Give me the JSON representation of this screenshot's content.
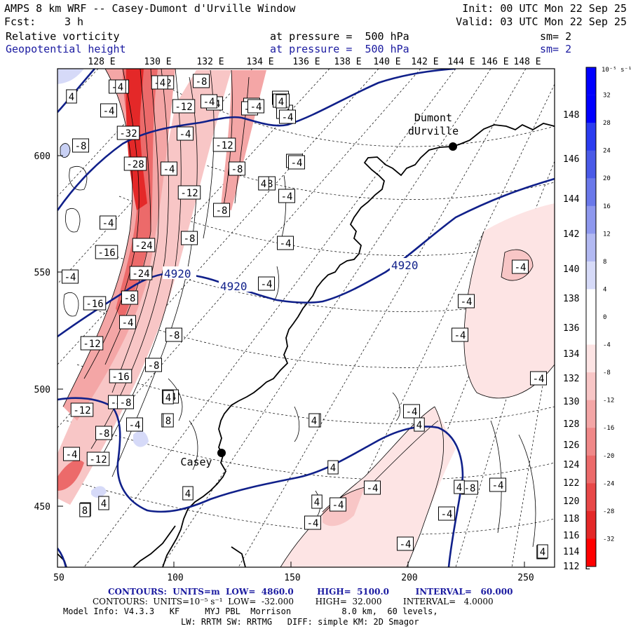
{
  "header": {
    "title": "AMPS 8 km WRF -- Casey-Dumont d'Urville Window",
    "init": "Init: 00 UTC Mon 22 Sep 25",
    "fcst_label": "Fcst:",
    "fcst_value": "3 h",
    "valid": "Valid: 03 UTC Mon 22 Sep 25",
    "field1_name": "Relative vorticity",
    "field1_level": "at pressure =  500 hPa",
    "field1_sm": "sm= 2",
    "field2_name": "Geopotential height",
    "field2_level": "at pressure =  500 hPa",
    "field2_sm": "sm= 2"
  },
  "map": {
    "top_lon_labels": [
      "128 E",
      "130 E",
      "132 E",
      "134 E",
      "136 E",
      "138 E",
      "140 E",
      "142 E",
      "144 E",
      "146 E",
      "148 E"
    ],
    "right_lon_labels": [
      "148 E",
      "146 E",
      "144 E",
      "142 E",
      "140 E",
      "138 E",
      "136 E",
      "134 E",
      "132 E",
      "130 E",
      "128 E",
      "126 E",
      "124 E",
      "122 E",
      "120 E",
      "118 E",
      "116 E",
      "114 E",
      "112 E"
    ],
    "left_grid_labels": [
      "600",
      "550",
      "500",
      "450"
    ],
    "bottom_grid_labels": [
      "50",
      "100",
      "150",
      "200",
      "250"
    ],
    "stations": [
      {
        "name_line1": "Dumont",
        "name_line2": "dUrville"
      },
      {
        "name_line1": "Casey",
        "name_line2": ""
      }
    ],
    "height_labels": [
      "4920",
      "4920",
      "4920"
    ],
    "vort_labels": [
      "-4",
      "-12",
      "-8",
      "-4",
      "-4",
      "-12",
      "-4",
      "-4",
      "-32",
      "-8",
      "-4",
      "-12",
      "-28",
      "-4",
      "-8",
      "-4",
      "-4",
      "-12",
      "-8",
      "-4",
      "-8",
      "-24",
      "-16",
      "-4",
      "-4",
      "-24",
      "-8",
      "-16",
      "-8",
      "-4",
      "-4",
      "-8",
      "-12",
      "-12",
      "-16",
      "-4",
      "-8",
      "-12",
      "-4",
      "-4",
      "-4",
      "-4",
      "-4",
      "-4",
      "-4",
      "-4",
      "-4",
      "-4",
      "-8",
      "-4",
      "-4",
      "-4",
      "-4",
      "-4",
      "-4",
      "-4",
      "-8",
      "-4",
      "-4",
      "-4",
      "-4",
      "-8",
      "-4",
      "4",
      "4",
      "4",
      "4",
      "4",
      "4",
      "4",
      "4",
      "4",
      "4",
      "4",
      "4",
      "4",
      "4",
      "8",
      "8",
      "4",
      "4",
      "4",
      "4"
    ],
    "colors": {
      "coast": "#000000",
      "height_contour": "#10208a",
      "negative_fill": "#f4a0a0",
      "negative_strong": "#e00000",
      "positive_fill": "#c8d0f4"
    }
  },
  "colorbar": {
    "unit": "10⁻⁵ s⁻¹",
    "labels": [
      "32",
      "28",
      "24",
      "20",
      "16",
      "12",
      "8",
      "4",
      "0",
      "-4",
      "-8",
      "-12",
      "-16",
      "-20",
      "-24",
      "-28",
      "-32"
    ],
    "colors": [
      "#0000ff",
      "#2b3cf0",
      "#4a5ae8",
      "#6a78ea",
      "#8e98ee",
      "#b2b9f2",
      "#d6daf8",
      "#ffffff",
      "#ffffff",
      "#fde4e4",
      "#f8c6c6",
      "#f4a6a6",
      "#f08888",
      "#ec6a6a",
      "#e84848",
      "#e42828",
      "#ff0000"
    ]
  },
  "footer": {
    "line1": "CONTOURS:  UNITS=m  LOW=  4860.0        HIGH=  5100.0         INTERVAL=   60.000",
    "line2": "CONTOURS:  UNITS=10⁻⁵ s⁻¹  LOW=  -32.000        HIGH=  32.000        INTERVAL=   4.0000",
    "line3": "Model Info: V4.3.3   KF     MYJ PBL  Morrison          8.0 km,  60 levels,",
    "line4": "LW: RRTM SW: RRTMG   DIFF: simple KM: 2D Smagor"
  }
}
